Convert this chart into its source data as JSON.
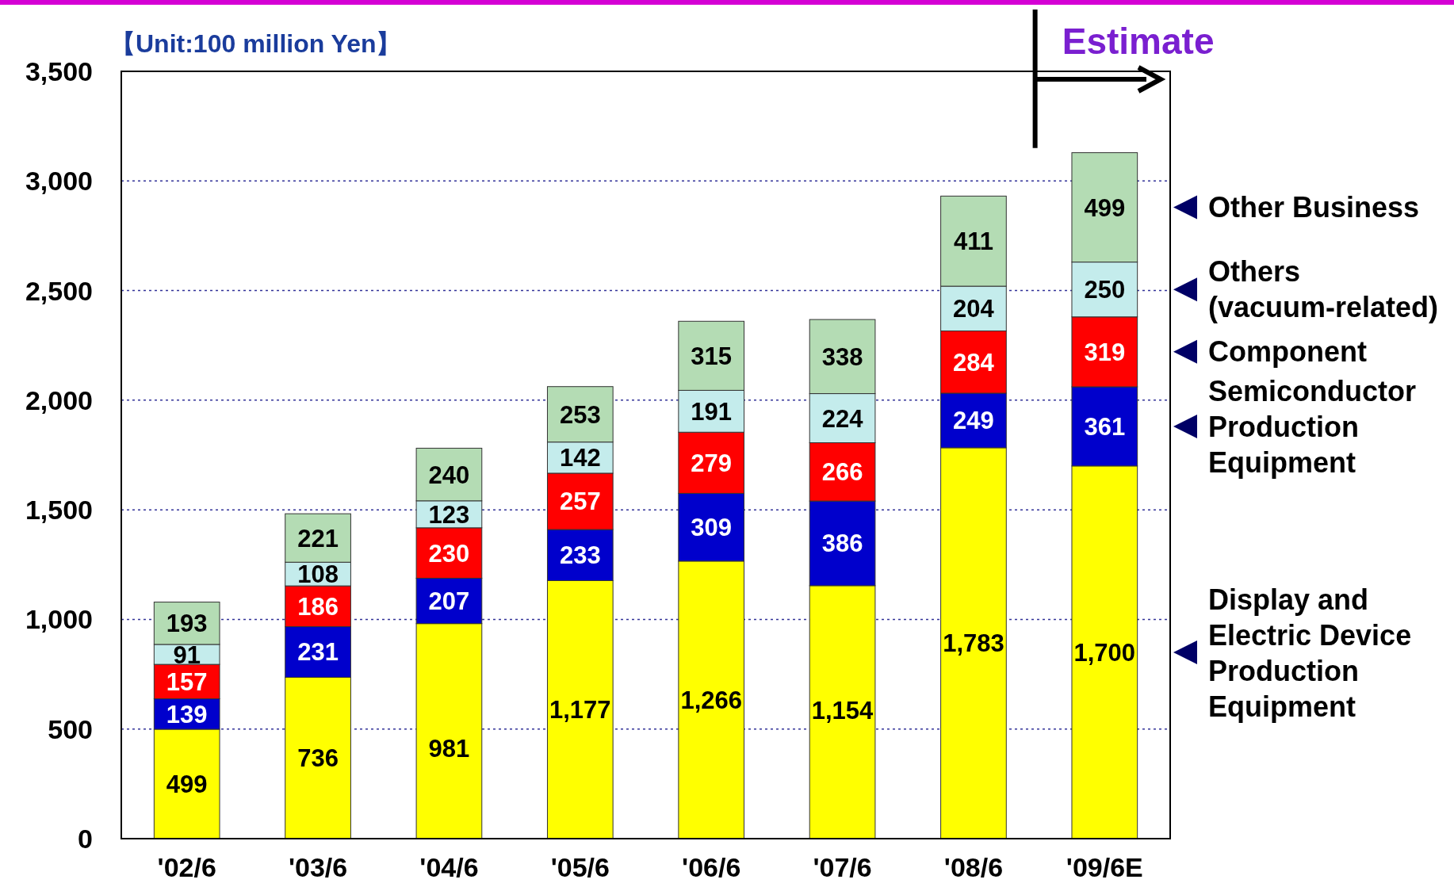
{
  "chart_data": {
    "type": "bar",
    "stacked": true,
    "categories": [
      "'02/6",
      "'03/6",
      "'04/6",
      "'05/6",
      "'06/6",
      "'07/6",
      "'08/6",
      "'09/6E"
    ],
    "series": [
      {
        "name": "Display and Electric Device Production Equipment",
        "color": "#ffff00",
        "values": [
          499,
          736,
          981,
          1177,
          1266,
          1154,
          1783,
          1700
        ],
        "value_labels": [
          "499",
          "736",
          "981",
          "1,177",
          "1,266",
          "1,154",
          "1,783",
          "1,700"
        ]
      },
      {
        "name": "Semiconductor Production Equipment",
        "color": "#0000cc",
        "values": [
          139,
          231,
          207,
          233,
          309,
          386,
          249,
          361
        ],
        "value_labels": [
          "139",
          "231",
          "207",
          "233",
          "309",
          "386",
          "249",
          "361"
        ]
      },
      {
        "name": "Component",
        "color": "#ff0000",
        "values": [
          157,
          186,
          230,
          257,
          279,
          266,
          284,
          319
        ],
        "value_labels": [
          "157",
          "186",
          "230",
          "257",
          "279",
          "266",
          "284",
          "319"
        ]
      },
      {
        "name": "Others (vacuum-related)",
        "color": "#c4ecec",
        "values": [
          91,
          108,
          123,
          142,
          191,
          224,
          204,
          250
        ],
        "value_labels": [
          "91",
          "108",
          "123",
          "142",
          "191",
          "224",
          "204",
          "250"
        ]
      },
      {
        "name": "Other Business",
        "color": "#b4dcb4",
        "values": [
          193,
          221,
          240,
          253,
          315,
          338,
          411,
          499
        ],
        "value_labels": [
          "193",
          "221",
          "240",
          "253",
          "315",
          "338",
          "411",
          "499"
        ]
      }
    ],
    "ylim": [
      0,
      3500
    ],
    "yticks": [
      {
        "value": 0,
        "label": "0"
      },
      {
        "value": 500,
        "label": "500"
      },
      {
        "value": 1000,
        "label": "1,000"
      },
      {
        "value": 1500,
        "label": "1,500"
      },
      {
        "value": 2000,
        "label": "2,000"
      },
      {
        "value": 2500,
        "label": "2,500"
      },
      {
        "value": 3000,
        "label": "3,000"
      },
      {
        "value": 3500,
        "label": "3,500"
      }
    ],
    "grid": "y",
    "legend": "right",
    "annotations": [
      "【Unit:100 million Yen】",
      "Estimate"
    ]
  }
}
